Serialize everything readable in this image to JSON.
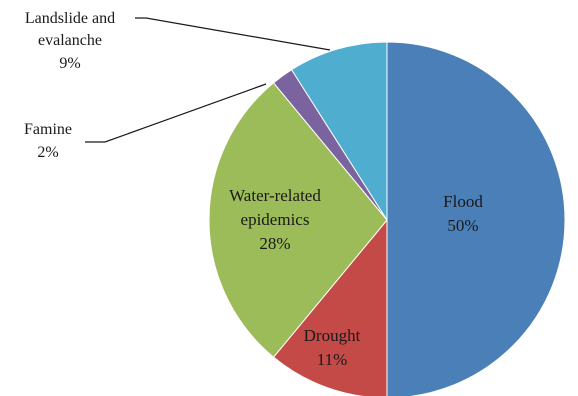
{
  "chart_data": {
    "type": "pie",
    "title": "",
    "slices": [
      {
        "label": "Flood",
        "value": 50,
        "percent_label": "50%",
        "color": "#4a7fb8"
      },
      {
        "label": "Drought",
        "value": 11,
        "percent_label": "11%",
        "color": "#c44a48"
      },
      {
        "label": "Water-related epidemics",
        "value": 28,
        "percent_label": "28%",
        "color": "#9cbb59"
      },
      {
        "label": "Famine",
        "value": 2,
        "percent_label": "2%",
        "color": "#7b63a0"
      },
      {
        "label": "Landslide and evalanche",
        "value": 9,
        "percent_label": "9%",
        "color": "#4fadd0"
      }
    ]
  },
  "labels": {
    "flood": {
      "name": "Flood",
      "pct": "50%"
    },
    "drought": {
      "name": "Drought",
      "pct": "11%"
    },
    "water": {
      "line1": "Water-related",
      "line2": "epidemics",
      "pct": "28%"
    },
    "famine": {
      "name": "Famine",
      "pct": "2%"
    },
    "landslide": {
      "line1": "Landslide and",
      "line2": "evalanche",
      "pct": "9%"
    }
  }
}
